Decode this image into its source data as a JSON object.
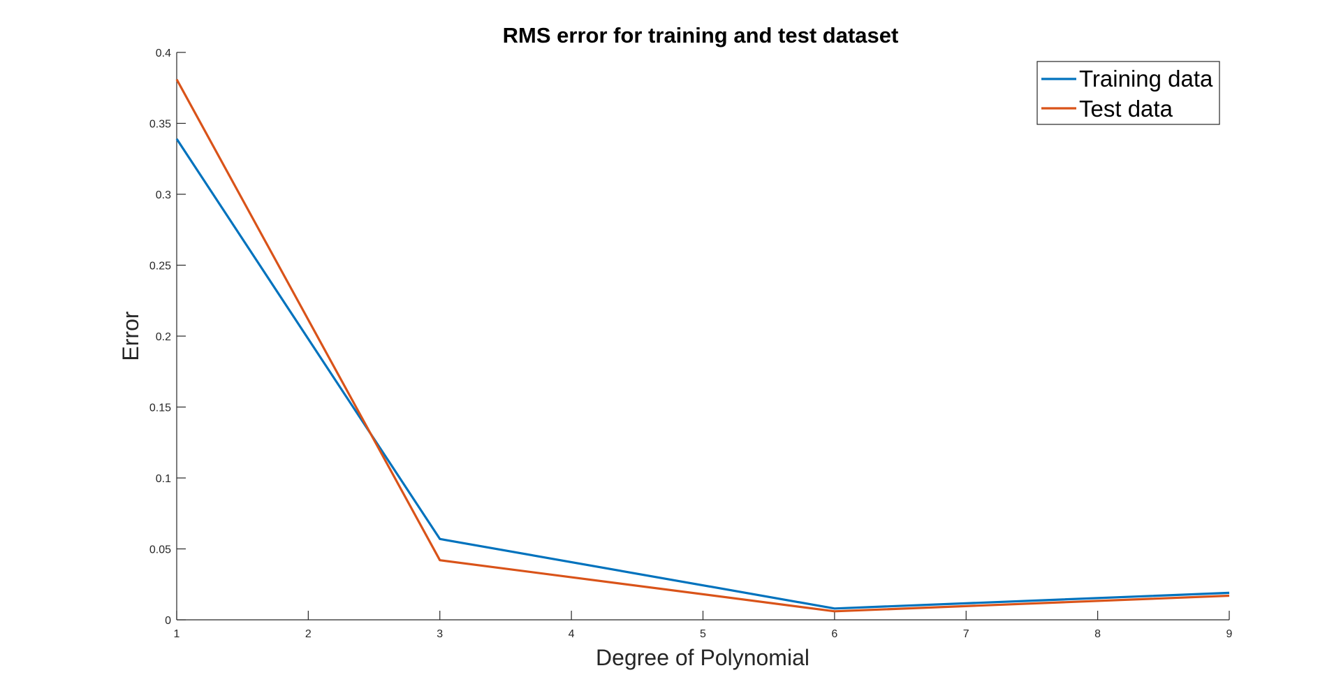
{
  "chart_data": {
    "type": "line",
    "title": "RMS error for training and test dataset",
    "xlabel": "Degree of Polynomial",
    "ylabel": "Error",
    "xlim": [
      1,
      9
    ],
    "ylim": [
      0,
      0.4
    ],
    "x_ticks": [
      1,
      2,
      3,
      4,
      5,
      6,
      7,
      8,
      9
    ],
    "y_ticks": [
      0,
      0.05,
      0.1,
      0.15,
      0.2,
      0.25,
      0.3,
      0.35,
      0.4
    ],
    "y_tick_labels": [
      "0",
      "0.05",
      "0.1",
      "0.15",
      "0.2",
      "0.25",
      "0.3",
      "0.35",
      "0.4"
    ],
    "grid": false,
    "legend_position": "top-right",
    "series": [
      {
        "name": "Training data",
        "color": "#0072BD",
        "x": [
          1,
          3,
          6,
          9
        ],
        "y": [
          0.339,
          0.057,
          0.008,
          0.019
        ]
      },
      {
        "name": "Test data",
        "color": "#D95319",
        "x": [
          1,
          3,
          6,
          9
        ],
        "y": [
          0.381,
          0.042,
          0.006,
          0.017
        ]
      }
    ]
  }
}
